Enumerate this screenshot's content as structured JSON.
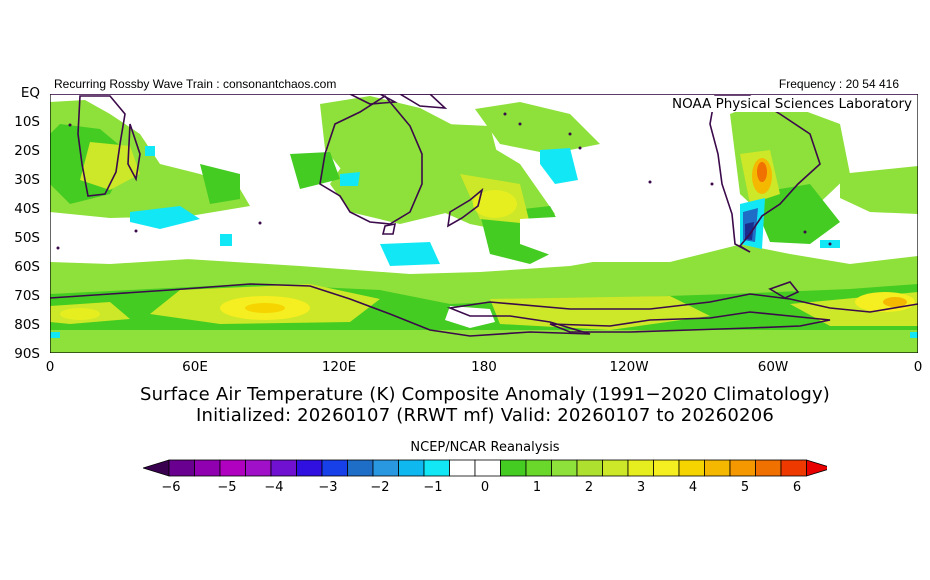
{
  "header": {
    "left_text": "Recurring Rossby Wave Train : consonantchaos.com",
    "right_text": "Frequency : 20 54 416",
    "lab_name": "NOAA Physical Sciences Laboratory"
  },
  "map": {
    "lat_labels": [
      "EQ",
      "10S",
      "20S",
      "30S",
      "40S",
      "50S",
      "60S",
      "70S",
      "80S",
      "90S"
    ],
    "lon_labels": [
      "0",
      "60E",
      "120E",
      "180",
      "120W",
      "60W",
      "0"
    ],
    "colors": {
      "land_outline": "#3b0a4a",
      "light_green": "#8ee03a",
      "green": "#44cc22",
      "yellow_green": "#cce828",
      "yellow": "#f5ee20",
      "orange": "#f5a800",
      "cyan": "#12e8f5",
      "blue": "#1e6ec8",
      "dark_blue": "#1a2c8c"
    }
  },
  "title": {
    "line1": "Surface Air Temperature (K) Composite Anomaly (1991−2020 Climatology)",
    "line2": "Initialized: 20260107 (RRWT mf) Valid: 20260107 to 20260206"
  },
  "colorbar": {
    "label": "NCEP/NCAR Reanalysis",
    "ticks": [
      "−6",
      "−5",
      "−4",
      "−3",
      "−2",
      "−1",
      "0",
      "1",
      "2",
      "3",
      "4",
      "5",
      "6"
    ],
    "colors": [
      "#3a0050",
      "#6a0090",
      "#9000b0",
      "#b000c0",
      "#a010c8",
      "#7010d0",
      "#3010e0",
      "#1840e8",
      "#1e6ec8",
      "#2a98e0",
      "#10b8f0",
      "#12e8f5",
      "#ffffff",
      "#ffffff",
      "#44cc22",
      "#6ad82a",
      "#8ee03a",
      "#aee030",
      "#cce828",
      "#e6ee20",
      "#f5ee20",
      "#f5d400",
      "#f5b800",
      "#f59800",
      "#f07000",
      "#ee3a00",
      "#e80000"
    ]
  }
}
